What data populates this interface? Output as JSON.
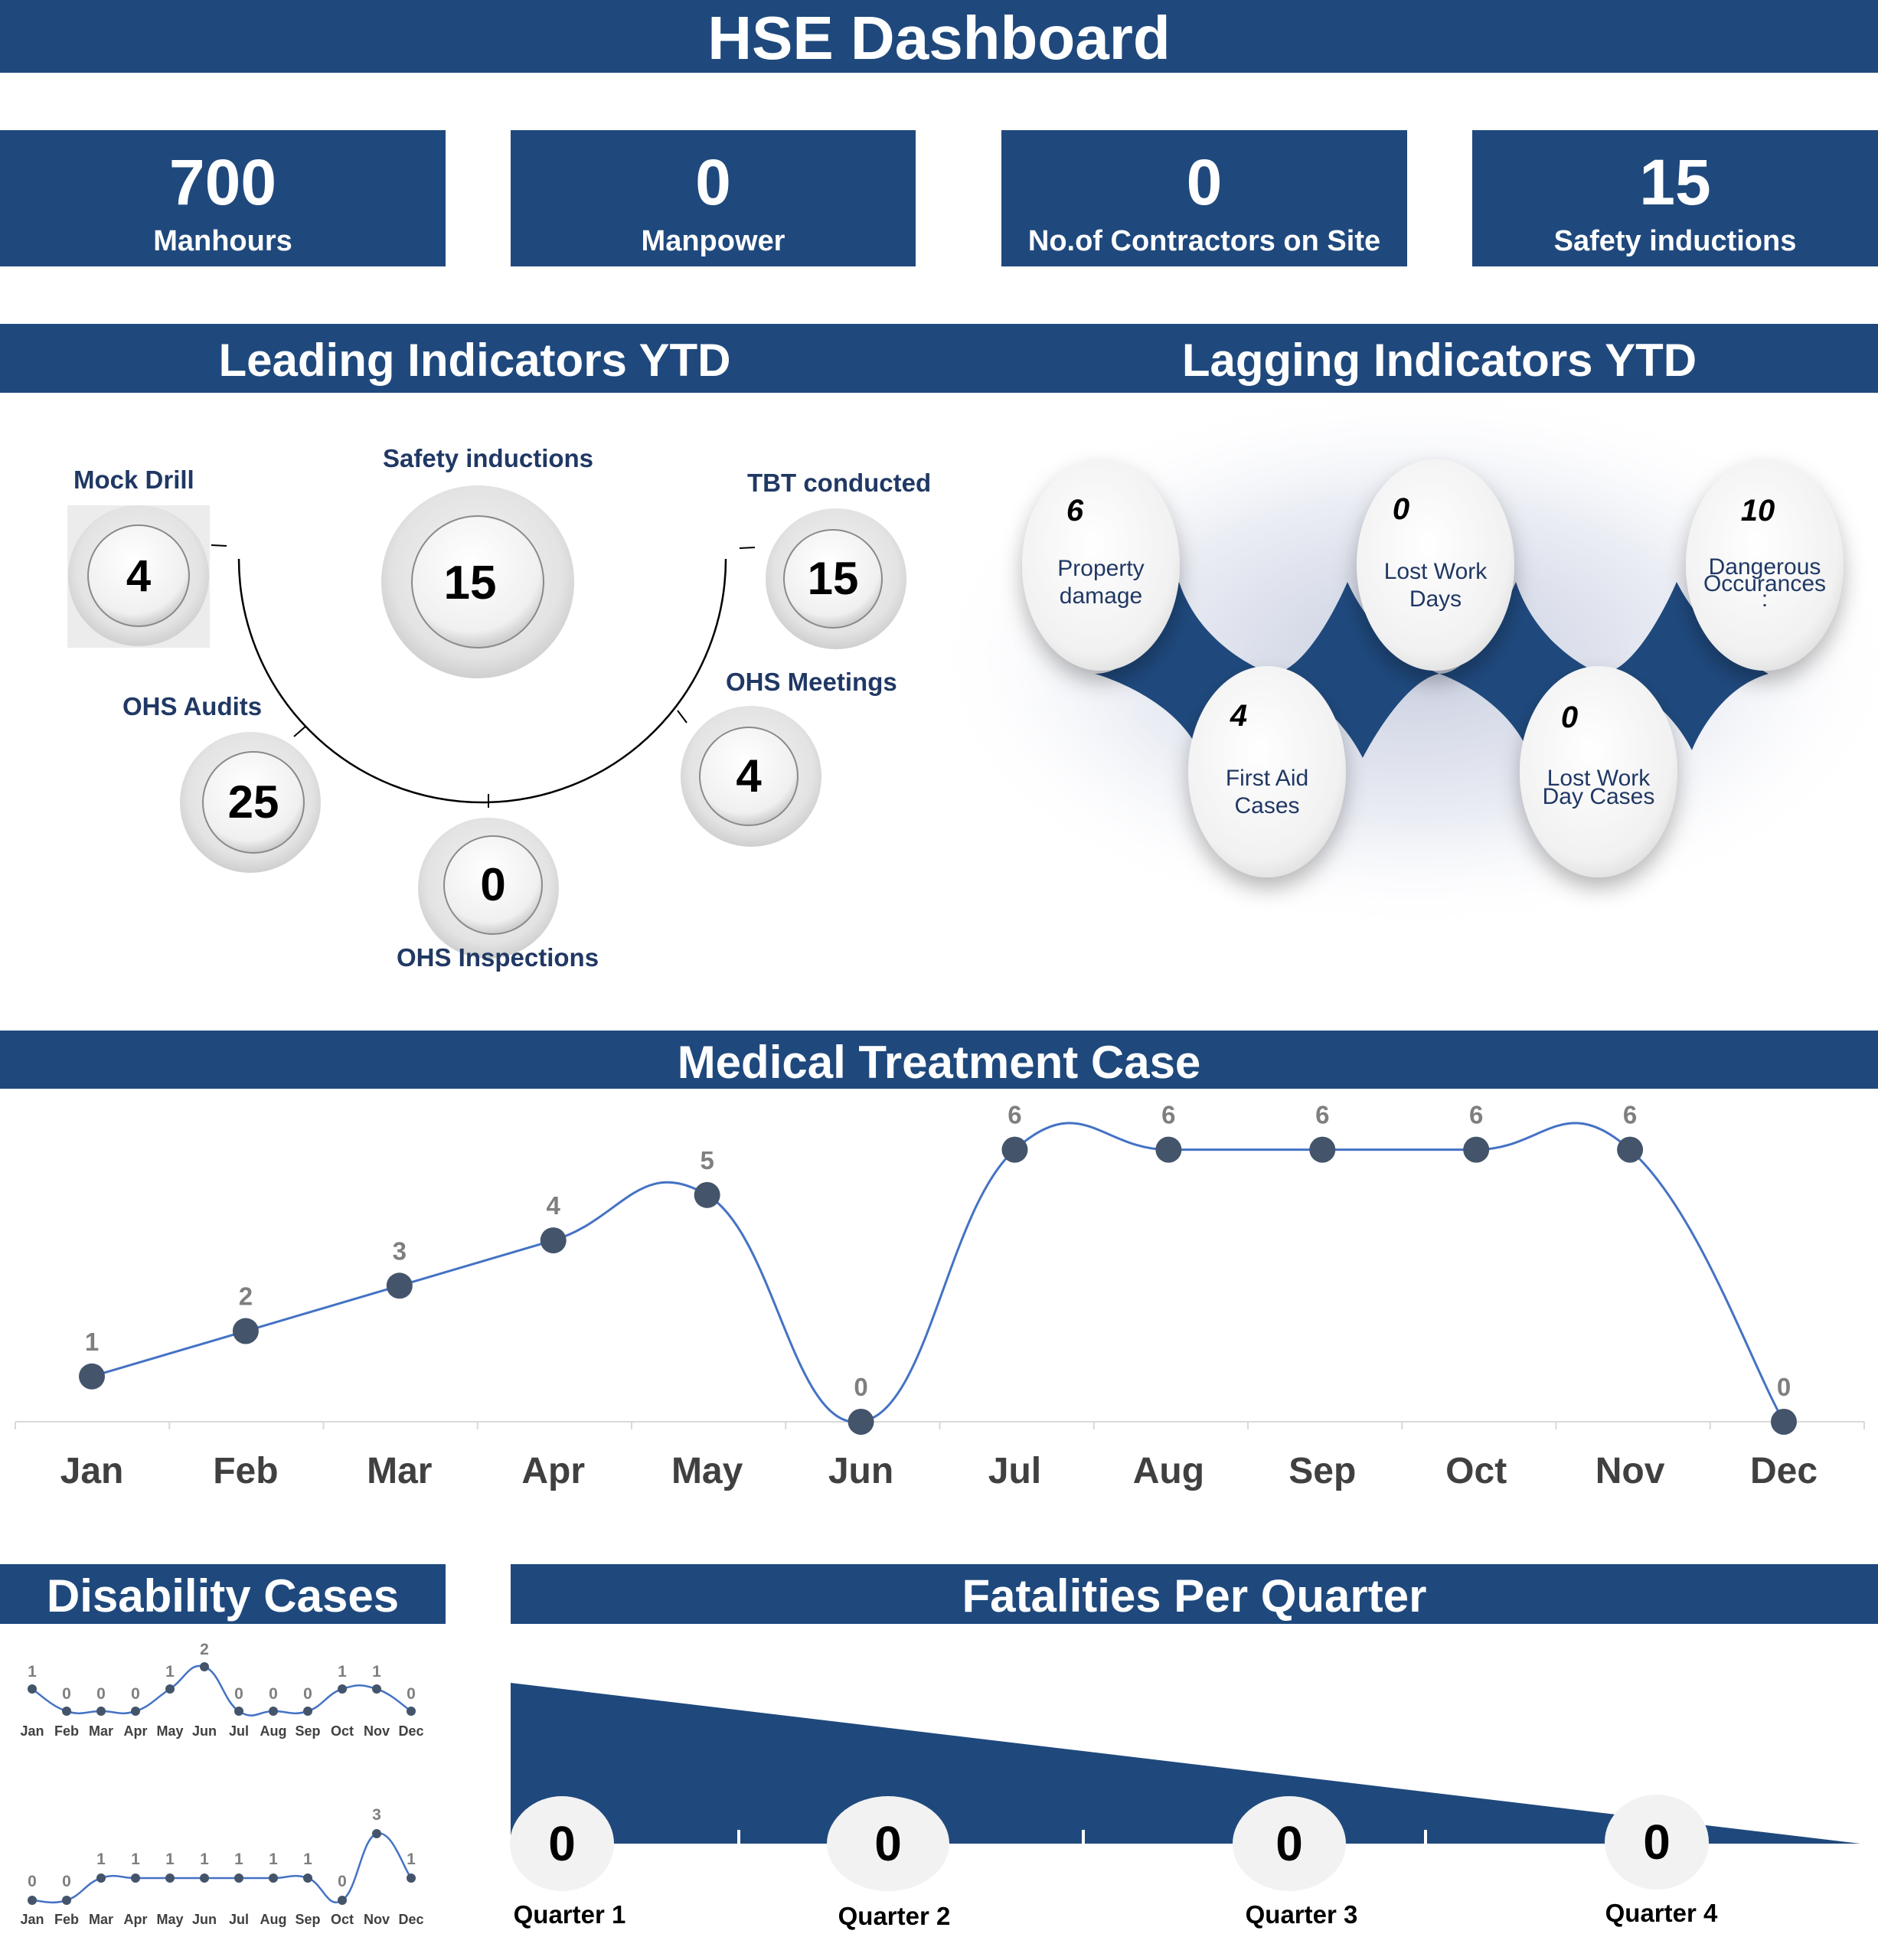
{
  "title": "HSE Dashboard",
  "kpis": [
    {
      "value": "700",
      "label": "Manhours"
    },
    {
      "value": "0",
      "label": "Manpower"
    },
    {
      "value": "0",
      "label": "No.of Contractors on Site"
    },
    {
      "value": "15",
      "label": "Safety inductions"
    }
  ],
  "leading": {
    "title": "Leading Indicators YTD",
    "items": [
      {
        "label": "Mock Drill",
        "value": "4"
      },
      {
        "label": "Safety inductions",
        "value": "15"
      },
      {
        "label": "TBT conducted",
        "value": "15"
      },
      {
        "label": "OHS Audits",
        "value": "25"
      },
      {
        "label": "OHS Meetings",
        "value": "4"
      },
      {
        "label": "OHS Inspections",
        "value": "0"
      }
    ]
  },
  "lagging": {
    "title": "Lagging Indicators YTD",
    "items": [
      {
        "value": "6",
        "label_line1": "Property",
        "label_line2": "damage"
      },
      {
        "value": "0",
        "label_line1": "Lost Work",
        "label_line2": "Days"
      },
      {
        "value": "10",
        "label_line1": "Dangerous",
        "label_line2": "Occurances",
        "label_line3": ":"
      },
      {
        "value": "4",
        "label_line1": "First Aid",
        "label_line2": "Cases"
      },
      {
        "value": "0",
        "label_line1": "Lost Work",
        "label_line2": "Day Cases"
      }
    ]
  },
  "medical": {
    "title": "Medical Treatment Case"
  },
  "disability": {
    "title": "Disability Cases"
  },
  "fatalities": {
    "title": "Fatalities Per Quarter",
    "quarters": [
      {
        "label": "Quarter 1",
        "value": "0"
      },
      {
        "label": "Quarter 2",
        "value": "0"
      },
      {
        "label": "Quarter 3",
        "value": "0"
      },
      {
        "label": "Quarter 4",
        "value": "0"
      }
    ]
  },
  "colors": {
    "band": "#1f497d",
    "line": "#4472c4",
    "marker": "#44546a",
    "label": "#7f7f7f"
  },
  "chart_data": [
    {
      "type": "line",
      "title": "Medical Treatment Case",
      "categories": [
        "Jan",
        "Feb",
        "Mar",
        "Apr",
        "May",
        "Jun",
        "Jul",
        "Aug",
        "Sep",
        "Oct",
        "Nov",
        "Dec"
      ],
      "values": [
        1,
        2,
        3,
        4,
        5,
        0,
        6,
        6,
        6,
        6,
        6,
        0
      ],
      "ylim": [
        0,
        6.5
      ],
      "smooth": true,
      "grid": false
    },
    {
      "type": "line",
      "title": "",
      "categories": [
        "Jan",
        "Feb",
        "Mar",
        "Apr",
        "May",
        "Jun",
        "Jul",
        "Aug",
        "Sep",
        "Oct",
        "Nov",
        "Dec"
      ],
      "values": [
        1,
        0,
        0,
        0,
        1,
        2,
        0,
        0,
        0,
        1,
        1,
        0
      ],
      "ylim": [
        0,
        2
      ]
    },
    {
      "type": "line",
      "title": "",
      "categories": [
        "Jan",
        "Feb",
        "Mar",
        "Apr",
        "May",
        "Jun",
        "Jul",
        "Aug",
        "Sep",
        "Oct",
        "Nov",
        "Dec"
      ],
      "values": [
        0,
        0,
        1,
        1,
        1,
        1,
        1,
        1,
        1,
        0,
        3,
        1
      ],
      "ylim": [
        0,
        3
      ]
    }
  ]
}
